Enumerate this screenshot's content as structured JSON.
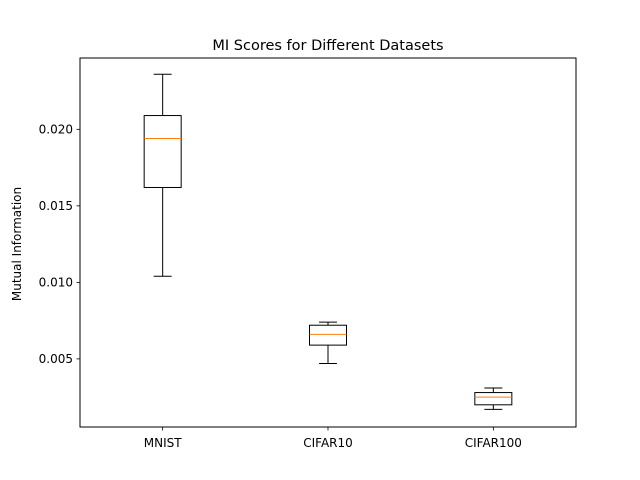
{
  "chart_data": {
    "type": "box",
    "title": "MI Scores for Different Datasets",
    "xlabel": "",
    "ylabel": "Mutual Information",
    "ylim": [
      0.00055,
      0.02466
    ],
    "yticks": [
      0.005,
      0.01,
      0.015,
      0.02
    ],
    "ytick_labels": [
      "0.005",
      "0.010",
      "0.015",
      "0.020"
    ],
    "categories": [
      "MNIST",
      "CIFAR10",
      "CIFAR100"
    ],
    "boxes": [
      {
        "label": "MNIST",
        "whisker_low": 0.0104,
        "q1": 0.0162,
        "median": 0.0194,
        "q3": 0.0209,
        "whisker_high": 0.0236
      },
      {
        "label": "CIFAR10",
        "whisker_low": 0.0047,
        "q1": 0.0059,
        "median": 0.0066,
        "q3": 0.0072,
        "whisker_high": 0.0074
      },
      {
        "label": "CIFAR100",
        "whisker_low": 0.0017,
        "q1": 0.002,
        "median": 0.0025,
        "q3": 0.0028,
        "whisker_high": 0.0031
      }
    ],
    "grid": false,
    "colors": {
      "box": "#000000",
      "median": "#ff7f0e"
    }
  }
}
